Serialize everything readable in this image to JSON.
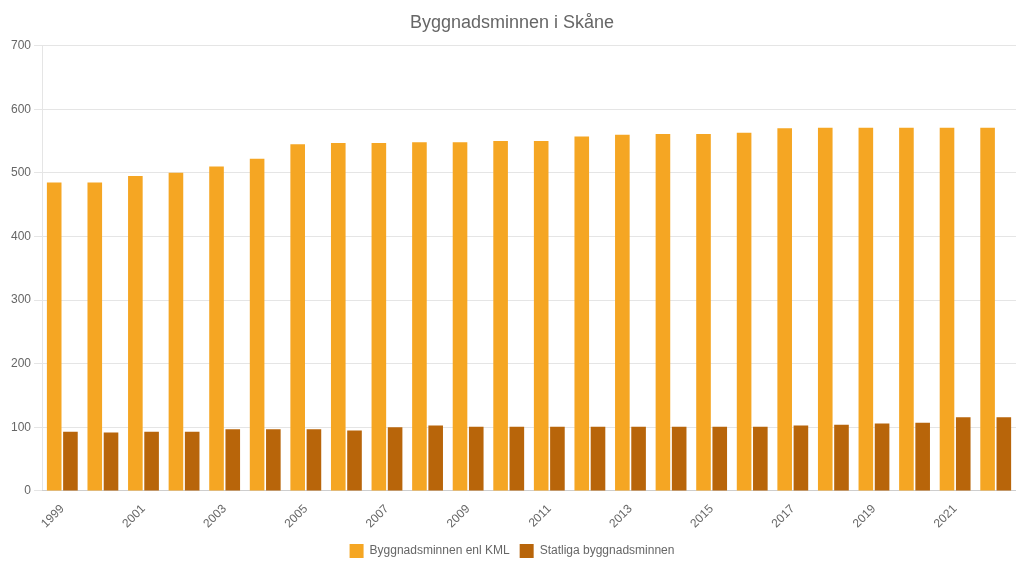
{
  "chart_data": {
    "type": "bar",
    "title": "Byggnadsminnen i Skåne",
    "categories": [
      "1999",
      null,
      "2001",
      null,
      "2003",
      null,
      "2005",
      null,
      "2007",
      null,
      "2009",
      null,
      "2011",
      null,
      "2013",
      null,
      "2015",
      null,
      "2017",
      null,
      "2019",
      null,
      "2021",
      null
    ],
    "series": [
      {
        "name": "Byggnadsminnen enl KML",
        "color": "#F5A623",
        "values": [
          485,
          485,
          495,
          500,
          510,
          522,
          545,
          547,
          547,
          548,
          548,
          550,
          550,
          557,
          560,
          561,
          561,
          563,
          570,
          571,
          571,
          571,
          571,
          571
        ]
      },
      {
        "name": "Statliga byggnadsminnen",
        "color": "#B8650A",
        "values": [
          93,
          92,
          93,
          93,
          97,
          97,
          97,
          95,
          100,
          103,
          101,
          101,
          101,
          101,
          101,
          101,
          101,
          101,
          103,
          104,
          106,
          107,
          116,
          116
        ]
      }
    ],
    "ylim": [
      0,
      700
    ],
    "yticks": [
      0,
      100,
      200,
      300,
      400,
      500,
      600,
      700
    ],
    "grid": true,
    "legend": "bottom"
  }
}
